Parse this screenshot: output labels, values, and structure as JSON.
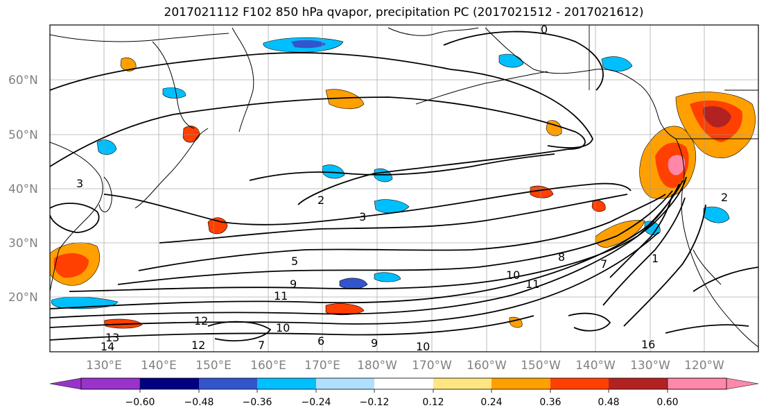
{
  "title": "2017021112 F102 850 hPa qvapor, precipitation PC (2017021512 - 2017021612)",
  "lat_labels": [
    "60°N",
    "50°N",
    "40°N",
    "30°N",
    "20°N"
  ],
  "lon_labels": [
    "130°E",
    "140°E",
    "150°E",
    "160°E",
    "170°E",
    "180°W",
    "170°W",
    "160°W",
    "150°W",
    "140°W",
    "130°W",
    "120°W"
  ],
  "colorbar": {
    "labels": [
      "−0.60",
      "−0.48",
      "−0.36",
      "−0.24",
      "−0.12",
      "0.12",
      "0.24",
      "0.36",
      "0.48",
      "0.60"
    ],
    "colors": [
      "#9933cc",
      "#000080",
      "#3355cc",
      "#00bfff",
      "#b0e0ff",
      "#ffffff",
      "#ffe680",
      "#ffa000",
      "#ff4000",
      "#b22222",
      "#ff88aa"
    ]
  },
  "contour_labels": [
    "0",
    "1",
    "2",
    "2",
    "3",
    "3",
    "5",
    "7",
    "8",
    "9",
    "10",
    "11",
    "12",
    "13",
    "14",
    "6",
    "7",
    "9",
    "10",
    "11",
    "12",
    "16",
    "10"
  ]
}
